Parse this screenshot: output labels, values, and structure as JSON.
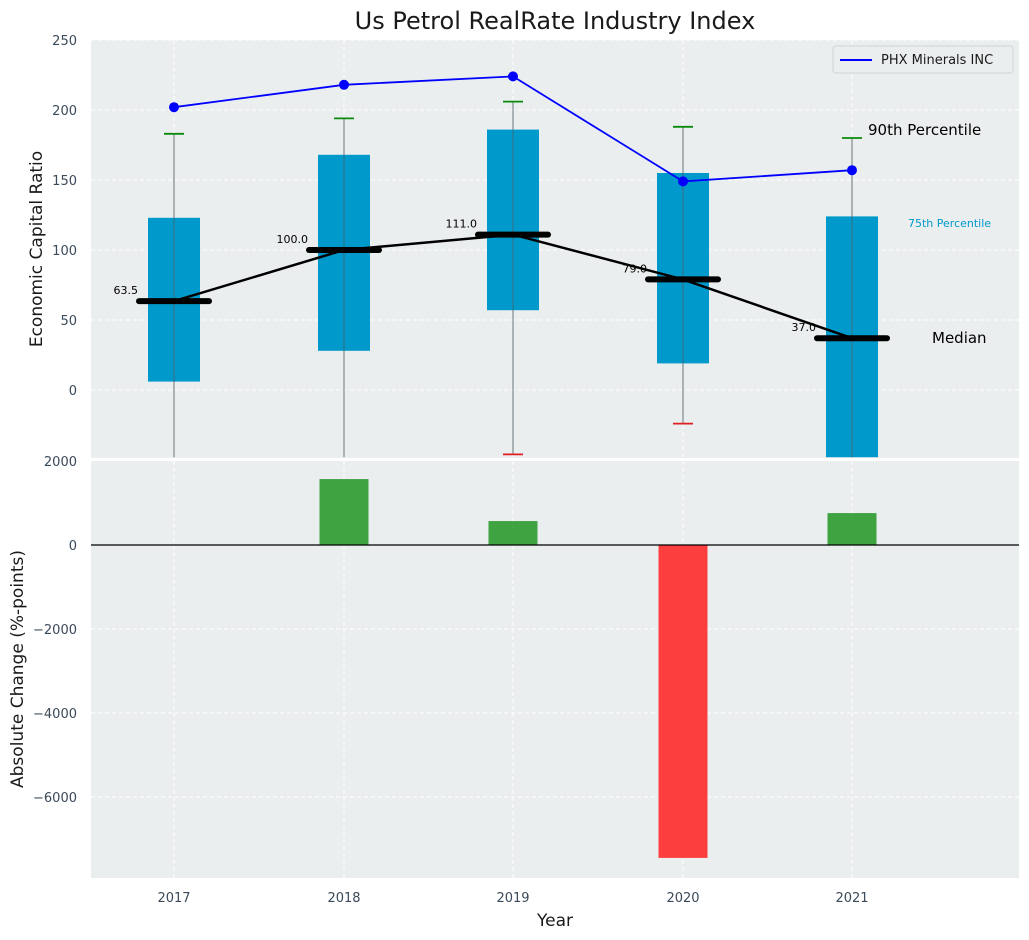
{
  "chart_data": {
    "type": "boxplot-with-bars",
    "title": "Us Petrol RealRate Industry Index",
    "xlabel": "Year",
    "categories": [
      "2017",
      "2018",
      "2019",
      "2020",
      "2021"
    ],
    "top_panel": {
      "ylabel": "Economic Capital Ratio",
      "ylim": [
        -48,
        250
      ],
      "yticks": [
        "0",
        "50",
        "100",
        "150",
        "200",
        "250"
      ],
      "boxes": [
        {
          "year": "2017",
          "q1": 6,
          "q3": 123,
          "median": 63.5,
          "whisker_low": -48,
          "whisker_high": 183,
          "low_cap": false
        },
        {
          "year": "2018",
          "q1": 28,
          "q3": 168,
          "median": 100.0,
          "whisker_low": -48,
          "whisker_high": 194,
          "low_cap": false
        },
        {
          "year": "2019",
          "q1": 57,
          "q3": 186,
          "median": 111.0,
          "whisker_low": -46,
          "whisker_high": 206,
          "low_cap": true
        },
        {
          "year": "2020",
          "q1": 19,
          "q3": 155,
          "median": 79.0,
          "whisker_low": -24,
          "whisker_high": 188,
          "low_cap": true
        },
        {
          "year": "2021",
          "q1": -48,
          "q3": 124,
          "median": 37.0,
          "whisker_low": -48,
          "whisker_high": 180,
          "low_cap": false
        }
      ],
      "median_labels": [
        "63.5",
        "100.0",
        "111.0",
        "79.0",
        "37.0"
      ],
      "company_series": {
        "name": "PHX Minerals INC",
        "values": [
          202,
          218,
          224,
          149,
          157
        ],
        "color": "#0000ff"
      },
      "box_color": "#0099cc",
      "annotations": {
        "p90": "90th Percentile",
        "p75": "75th Percentile",
        "median": "Median"
      },
      "legend": {
        "placement": "top-right",
        "entries": [
          "PHX Minerals INC"
        ]
      }
    },
    "bottom_panel": {
      "ylabel": "Absolute Change (%-points)",
      "ylim": [
        -7900,
        2000
      ],
      "yticks": [
        "2000",
        "0",
        "−2000",
        "−4000",
        "−6000"
      ],
      "values": [
        0,
        1570,
        570,
        -7450,
        760
      ],
      "positive_color": "#2e9a2e",
      "negative_color": "#ff2a2a"
    }
  }
}
